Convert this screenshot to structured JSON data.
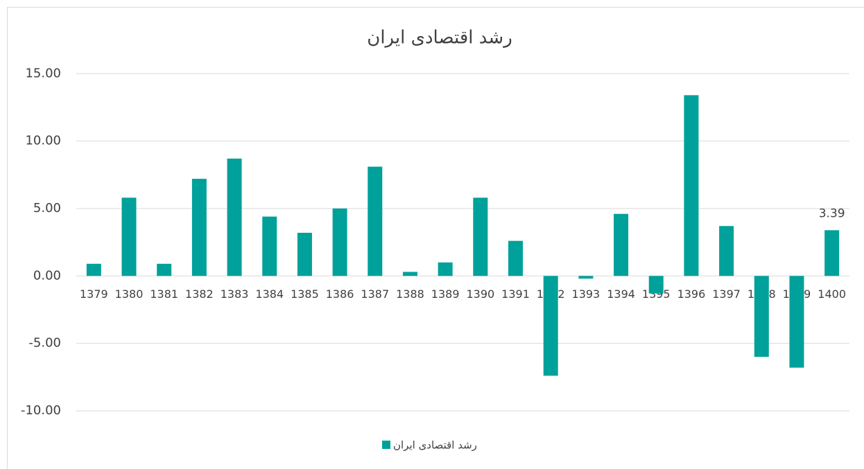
{
  "chart_data": {
    "type": "bar",
    "title": "رشد اقتصادی ایران",
    "categories": [
      "1379",
      "1380",
      "1381",
      "1382",
      "1383",
      "1384",
      "1385",
      "1386",
      "1387",
      "1388",
      "1389",
      "1390",
      "1391",
      "1392",
      "1393",
      "1394",
      "1395",
      "1396",
      "1397",
      "1398",
      "1399",
      "1400"
    ],
    "series": [
      {
        "name": "رشد اقتصادی ایران",
        "color": "#00a19a",
        "values": [
          0.9,
          5.8,
          0.9,
          7.2,
          8.7,
          4.4,
          3.2,
          5.0,
          8.1,
          0.3,
          1.0,
          5.8,
          2.6,
          -7.4,
          -0.2,
          4.6,
          -1.3,
          13.4,
          3.7,
          -6.0,
          -6.8,
          3.39
        ],
        "value_labels": [
          null,
          null,
          null,
          null,
          null,
          null,
          null,
          null,
          null,
          null,
          null,
          null,
          null,
          null,
          null,
          null,
          null,
          null,
          null,
          null,
          null,
          "3.39"
        ]
      }
    ],
    "ylim": [
      -10,
      15
    ],
    "yticks": [
      {
        "value": -10,
        "label": "-10.00"
      },
      {
        "value": -5,
        "label": "-5.00"
      },
      {
        "value": 0,
        "label": "0.00"
      },
      {
        "value": 5,
        "label": "5.00"
      },
      {
        "value": 10,
        "label": "10.00"
      },
      {
        "value": 15,
        "label": "15.00"
      }
    ],
    "grid": true,
    "legend": "bottom"
  }
}
